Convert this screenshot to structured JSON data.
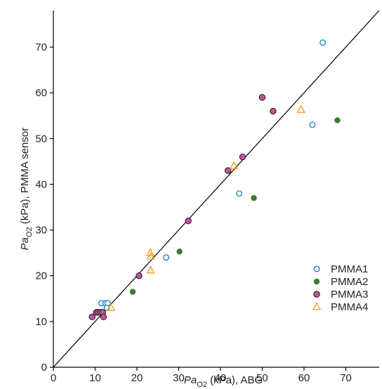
{
  "chart_data": {
    "type": "scatter",
    "title": "",
    "xlabel": {
      "prefix": "Pa",
      "sub": "O2",
      "suffix": " (kPa), ABG"
    },
    "ylabel": {
      "prefix": "Pa",
      "sub": "O2",
      "suffix": " (kPa), PMMA sensor"
    },
    "xlim": [
      0,
      78
    ],
    "ylim": [
      0,
      78
    ],
    "xticks": [
      "0",
      "10",
      "20",
      "30",
      "40",
      "50",
      "60",
      "70"
    ],
    "yticks": [
      "0",
      "10",
      "20",
      "30",
      "40",
      "50",
      "60",
      "70"
    ],
    "grid": false,
    "identity_line": true,
    "legend_position": "bottom-right",
    "series": [
      {
        "name": "PMMA1",
        "marker": "open-circle",
        "color": "#1a7fbf",
        "points": [
          [
            11.5,
            14
          ],
          [
            12.5,
            14
          ],
          [
            13,
            14
          ],
          [
            12.8,
            13
          ],
          [
            27,
            24
          ],
          [
            44.5,
            38
          ],
          [
            62,
            53
          ],
          [
            64.5,
            71
          ]
        ]
      },
      {
        "name": "PMMA2",
        "marker": "filled-circle",
        "color": "#3a7a30",
        "points": [
          [
            9.2,
            11
          ],
          [
            19,
            16.5
          ],
          [
            30.2,
            25.3
          ],
          [
            48,
            37
          ],
          [
            68,
            54
          ]
        ]
      },
      {
        "name": "PMMA3",
        "marker": "filled-circle-outlined",
        "color": "#c0559a",
        "points": [
          [
            9.3,
            11
          ],
          [
            10.3,
            12
          ],
          [
            10.8,
            12
          ],
          [
            11.3,
            12
          ],
          [
            11.8,
            12
          ],
          [
            12,
            11
          ],
          [
            20.5,
            20
          ],
          [
            32.3,
            32
          ],
          [
            41.8,
            43
          ],
          [
            45.3,
            46
          ],
          [
            50,
            59
          ],
          [
            52.6,
            56
          ]
        ]
      },
      {
        "name": "PMMA4",
        "marker": "open-triangle",
        "color": "#f0a020",
        "points": [
          [
            13.8,
            13
          ],
          [
            23.2,
            25
          ],
          [
            23.3,
            24.2
          ],
          [
            23.3,
            21.2
          ],
          [
            43.2,
            44
          ],
          [
            59.3,
            56.3
          ]
        ]
      }
    ]
  }
}
